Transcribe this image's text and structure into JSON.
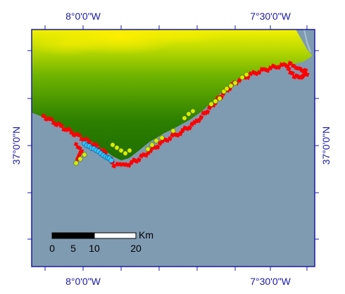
{
  "map": {
    "graticule": {
      "top_labels": [
        "8°0'0\"W",
        "7°30'0\"W"
      ],
      "bottom_labels": [
        "8°0'0\"W",
        "7°30'0\"W"
      ],
      "left_labels": [
        "37°0'0\"N"
      ],
      "right_labels": [
        "37°0'0\"N"
      ]
    },
    "scale_bar": {
      "unit": "Km",
      "ticks": [
        "0",
        "5",
        "10",
        "20"
      ]
    },
    "colors": {
      "sea": "#7f9bb2",
      "land_low": "#1f6e00",
      "land_high": "#f4f000",
      "frame": "#1a1aa6",
      "points_red": "#ff0000",
      "points_yellow": "#d4f000",
      "points_cyan": "#2ec7ff"
    },
    "point_series": [
      {
        "color_key": "points_red"
      },
      {
        "color_key": "points_yellow"
      },
      {
        "color_key": "points_cyan"
      }
    ]
  }
}
